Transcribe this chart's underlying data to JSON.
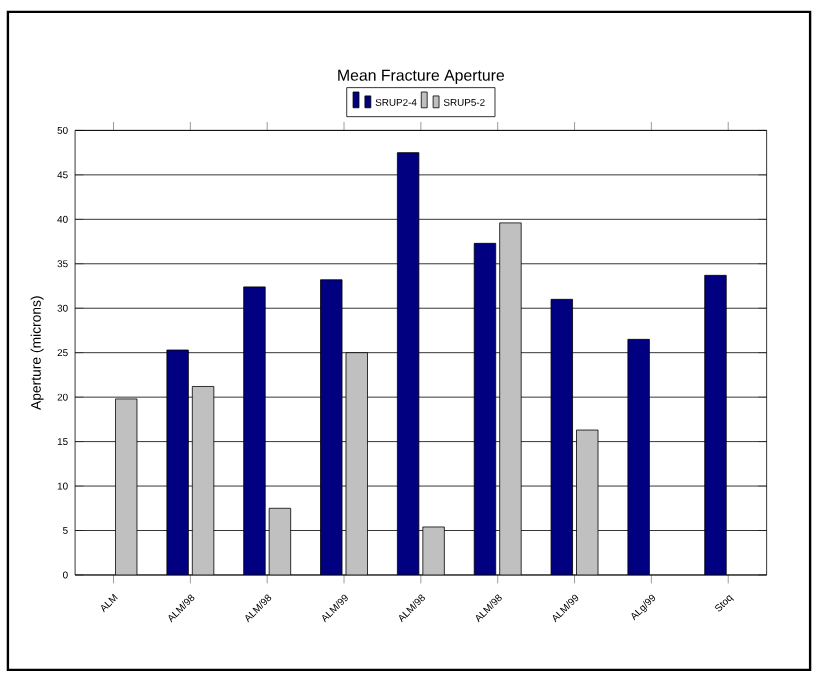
{
  "chart_data": {
    "type": "bar",
    "title": "Mean Fracture Aperture",
    "ylabel": "Aperture (microns)",
    "categories": [
      "ALM",
      "ALM/98",
      "ALM/98",
      "ALM/99",
      "ALM/98",
      "ALM/98",
      "ALM/99",
      "ALg/99",
      "Stoq"
    ],
    "series": [
      {
        "name": "SRUP2-4",
        "color": "#000080",
        "values": [
          null,
          25.3,
          32.4,
          33.2,
          47.5,
          37.3,
          31.0,
          26.5,
          33.7
        ]
      },
      {
        "name": "SRUP5-2",
        "color": "#c0c0c0",
        "values": [
          19.8,
          21.2,
          7.5,
          25.0,
          5.4,
          39.6,
          16.3,
          null,
          null
        ]
      }
    ],
    "ylim": [
      0,
      50
    ],
    "yticks": [
      0,
      5,
      10,
      15,
      20,
      25,
      30,
      35,
      40,
      45,
      50
    ],
    "grid": "y",
    "legend": "top"
  }
}
